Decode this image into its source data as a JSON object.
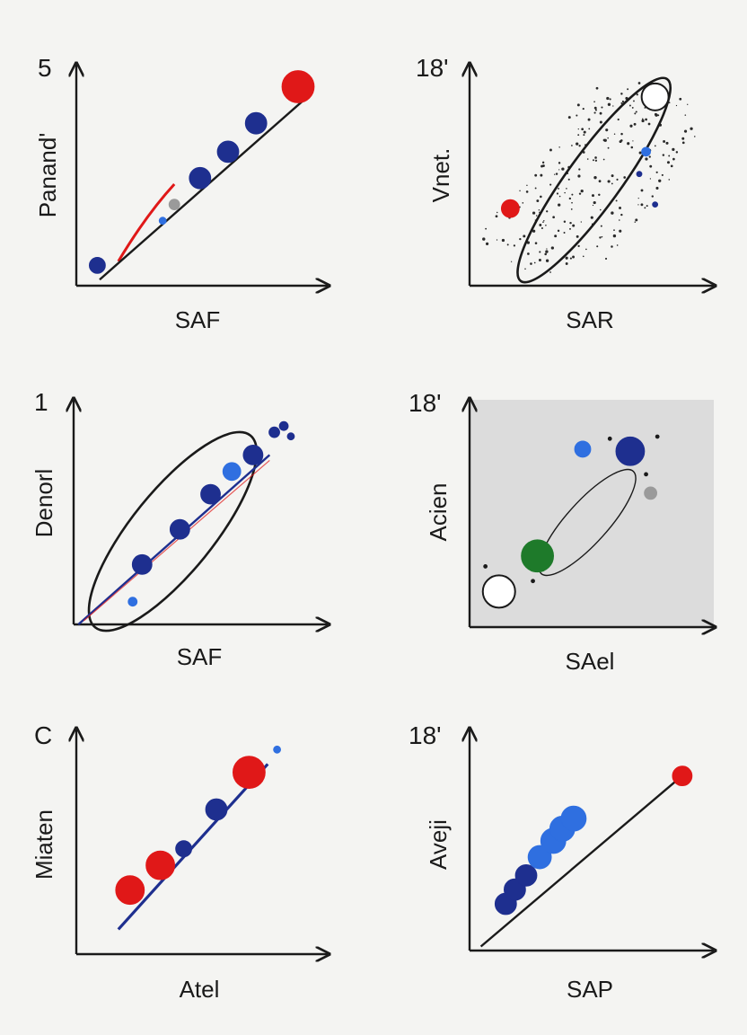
{
  "colors": {
    "navy": "#1e2f8f",
    "blue": "#2f6fe0",
    "red": "#e01818",
    "green": "#1e7a2a",
    "gray": "#9a9a9a",
    "axis": "#1a1a1a",
    "panel_bg": "#dcdcdc"
  },
  "chart_data": [
    {
      "type": "scatter",
      "ytick_top": "5",
      "ylabel": "Panand'",
      "xlabel": "SAF",
      "trend_line": [
        [
          0.1,
          0.03
        ],
        [
          0.98,
          0.92
        ]
      ],
      "red_curve": [
        [
          0.18,
          0.12
        ],
        [
          0.3,
          0.35
        ],
        [
          0.42,
          0.5
        ]
      ],
      "points": [
        {
          "x": 0.09,
          "y": 0.1,
          "size": 9,
          "color": "navy"
        },
        {
          "x": 0.37,
          "y": 0.32,
          "size": 4,
          "color": "blue"
        },
        {
          "x": 0.42,
          "y": 0.4,
          "size": 6,
          "color": "gray"
        },
        {
          "x": 0.53,
          "y": 0.53,
          "size": 12,
          "color": "navy"
        },
        {
          "x": 0.65,
          "y": 0.66,
          "size": 12,
          "color": "navy"
        },
        {
          "x": 0.77,
          "y": 0.8,
          "size": 12,
          "color": "navy"
        },
        {
          "x": 0.95,
          "y": 0.98,
          "size": 18,
          "color": "red"
        }
      ]
    },
    {
      "type": "scatter",
      "ytick_top": "18'",
      "ylabel": "Vnet.",
      "xlabel": "SAR",
      "ellipse": {
        "cx": 0.55,
        "cy": 0.52,
        "rx": 0.58,
        "ry": 0.06,
        "angle_deg": 54
      },
      "points": [
        {
          "x": 0.18,
          "y": 0.38,
          "size": 10,
          "color": "red"
        },
        {
          "x": 0.78,
          "y": 0.66,
          "size": 5,
          "color": "blue"
        },
        {
          "x": 0.82,
          "y": 0.4,
          "size": 3,
          "color": "navy"
        },
        {
          "x": 0.75,
          "y": 0.55,
          "size": 3,
          "color": "navy"
        },
        {
          "x": 0.82,
          "y": 0.93,
          "size": 15,
          "color": "open"
        }
      ],
      "background_dots": 260
    },
    {
      "type": "scatter",
      "ytick_top": "1",
      "ylabel": "Denorl",
      "xlabel": "SAF",
      "ellipse": {
        "cx": 0.42,
        "cy": 0.45,
        "rx": 0.55,
        "ry": 0.09,
        "angle_deg": 51
      },
      "trend_line": [
        [
          0.02,
          0.0
        ],
        [
          0.83,
          0.82
        ]
      ],
      "points": [
        {
          "x": 0.29,
          "y": 0.29,
          "size": 11,
          "color": "navy"
        },
        {
          "x": 0.45,
          "y": 0.46,
          "size": 11,
          "color": "navy"
        },
        {
          "x": 0.58,
          "y": 0.63,
          "size": 11,
          "color": "navy"
        },
        {
          "x": 0.67,
          "y": 0.74,
          "size": 10,
          "color": "blue"
        },
        {
          "x": 0.76,
          "y": 0.82,
          "size": 11,
          "color": "navy"
        },
        {
          "x": 0.25,
          "y": 0.11,
          "size": 5,
          "color": "blue"
        },
        {
          "x": 0.85,
          "y": 0.93,
          "size": 6,
          "color": "navy"
        },
        {
          "x": 0.89,
          "y": 0.96,
          "size": 5,
          "color": "navy"
        },
        {
          "x": 0.92,
          "y": 0.91,
          "size": 4,
          "color": "navy"
        }
      ]
    },
    {
      "type": "scatter",
      "ytick_top": "18'",
      "ylabel": "Acien",
      "xlabel": "SAel",
      "shaded_background": true,
      "ellipse": {
        "cx": 0.52,
        "cy": 0.5,
        "rx": 0.32,
        "ry": 0.045,
        "angle_deg": 48
      },
      "points": [
        {
          "x": 0.13,
          "y": 0.17,
          "size": 18,
          "color": "open"
        },
        {
          "x": 0.3,
          "y": 0.34,
          "size": 18,
          "color": "green"
        },
        {
          "x": 0.71,
          "y": 0.84,
          "size": 16,
          "color": "navy"
        },
        {
          "x": 0.5,
          "y": 0.85,
          "size": 9,
          "color": "blue"
        },
        {
          "x": 0.8,
          "y": 0.64,
          "size": 7,
          "color": "gray"
        },
        {
          "x": 0.07,
          "y": 0.29,
          "size": 2,
          "color": "axis"
        },
        {
          "x": 0.28,
          "y": 0.22,
          "size": 2,
          "color": "axis"
        },
        {
          "x": 0.62,
          "y": 0.9,
          "size": 2,
          "color": "axis"
        },
        {
          "x": 0.83,
          "y": 0.91,
          "size": 2,
          "color": "axis"
        },
        {
          "x": 0.78,
          "y": 0.73,
          "size": 2,
          "color": "axis"
        }
      ]
    },
    {
      "type": "scatter",
      "ytick_top": "C",
      "ylabel": "Miaten",
      "xlabel": "Atel",
      "trend_line": [
        [
          0.18,
          0.12
        ],
        [
          0.82,
          0.92
        ]
      ],
      "points": [
        {
          "x": 0.23,
          "y": 0.31,
          "size": 16,
          "color": "red"
        },
        {
          "x": 0.36,
          "y": 0.43,
          "size": 16,
          "color": "red"
        },
        {
          "x": 0.46,
          "y": 0.51,
          "size": 9,
          "color": "navy"
        },
        {
          "x": 0.6,
          "y": 0.7,
          "size": 12,
          "color": "navy"
        },
        {
          "x": 0.74,
          "y": 0.88,
          "size": 18,
          "color": "red"
        },
        {
          "x": 0.86,
          "y": 0.99,
          "size": 4,
          "color": "blue"
        }
      ]
    },
    {
      "type": "scatter",
      "ytick_top": "18'",
      "ylabel": "Aveji",
      "xlabel": "SAP",
      "trend_line": [
        [
          0.05,
          0.02
        ],
        [
          0.96,
          0.88
        ]
      ],
      "points": [
        {
          "x": 0.16,
          "y": 0.23,
          "size": 12,
          "color": "navy"
        },
        {
          "x": 0.2,
          "y": 0.3,
          "size": 12,
          "color": "navy"
        },
        {
          "x": 0.25,
          "y": 0.37,
          "size": 12,
          "color": "navy"
        },
        {
          "x": 0.31,
          "y": 0.46,
          "size": 13,
          "color": "blue"
        },
        {
          "x": 0.37,
          "y": 0.54,
          "size": 14,
          "color": "blue"
        },
        {
          "x": 0.41,
          "y": 0.6,
          "size": 14,
          "color": "blue"
        },
        {
          "x": 0.46,
          "y": 0.65,
          "size": 14,
          "color": "blue"
        },
        {
          "x": 0.94,
          "y": 0.86,
          "size": 11,
          "color": "red"
        }
      ]
    }
  ]
}
